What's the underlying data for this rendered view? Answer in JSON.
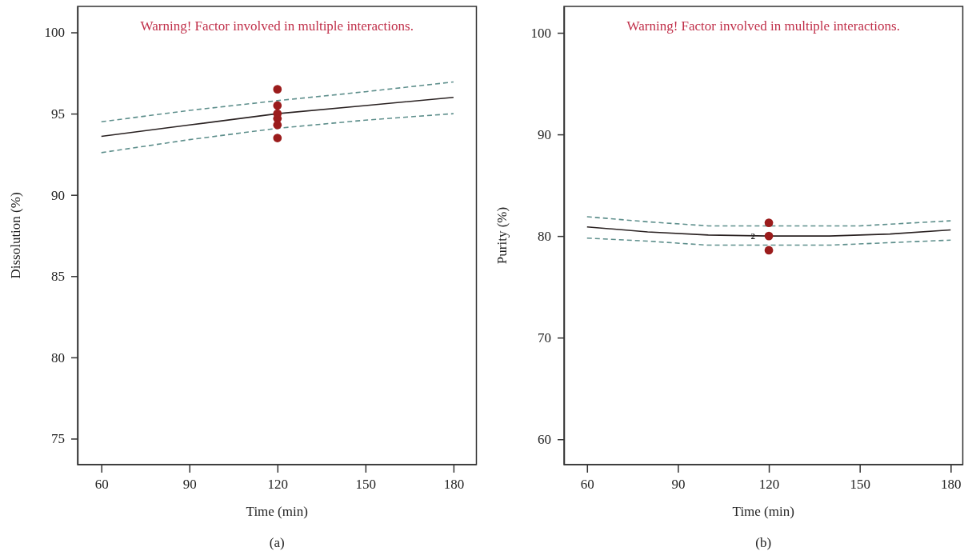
{
  "chart_data": [
    {
      "type": "line",
      "title": "(a)",
      "xlabel": "Time (min)",
      "ylabel": "Dissolution (%)",
      "annotations": [
        "Warning! Factor involved in multiple interactions."
      ],
      "xlim": [
        51.9,
        187.8
      ],
      "ylim": [
        73.4,
        101.6
      ],
      "xticks": [
        60,
        90,
        120,
        150,
        180
      ],
      "yticks": [
        75,
        80,
        85,
        90,
        95,
        100
      ],
      "grid": false,
      "series": [
        {
          "color": "#5e8f8c",
          "line_style": "dashed",
          "x": [
            60,
            90,
            120,
            150,
            180
          ],
          "values": [
            94.5,
            95.2,
            95.8,
            96.35,
            96.95
          ]
        },
        {
          "color": "#2a2222",
          "line_style": "solid",
          "x": [
            60,
            90,
            120,
            150,
            180
          ],
          "values": [
            93.6,
            94.3,
            95.0,
            95.5,
            96.0
          ]
        },
        {
          "color": "#5e8f8c",
          "line_style": "dashed",
          "x": [
            60,
            90,
            120,
            150,
            180
          ],
          "values": [
            92.6,
            93.4,
            94.1,
            94.6,
            95.0
          ]
        },
        {
          "type": "scatter",
          "color": "#9b1c1c",
          "marker": "circle",
          "x": [
            120,
            120,
            120,
            120,
            120,
            120
          ],
          "values": [
            96.5,
            95.5,
            95.0,
            94.7,
            94.3,
            93.5
          ]
        }
      ]
    },
    {
      "type": "line",
      "title": "(b)",
      "xlabel": "Time (min)",
      "ylabel": "Purity (%)",
      "annotations": [
        "Warning! Factor involved in multiple interactions.",
        {
          "text": "2",
          "x": 116,
          "y": 80
        }
      ],
      "xlim": [
        52.4,
        184
      ],
      "ylim": [
        57.5,
        102.6
      ],
      "xticks": [
        60,
        90,
        120,
        150,
        180
      ],
      "yticks": [
        60,
        70,
        80,
        90,
        100
      ],
      "grid": false,
      "series": [
        {
          "color": "#5e8f8c",
          "line_style": "dashed",
          "x": [
            60,
            80,
            100,
            120,
            150,
            180
          ],
          "values": [
            81.9,
            81.4,
            81.0,
            81.0,
            81.0,
            81.5
          ]
        },
        {
          "color": "#2a2222",
          "line_style": "solid",
          "x": [
            60,
            80,
            100,
            120,
            140,
            160,
            180
          ],
          "values": [
            80.9,
            80.4,
            80.1,
            80.0,
            80.0,
            80.2,
            80.6
          ]
        },
        {
          "color": "#5e8f8c",
          "line_style": "dashed",
          "x": [
            60,
            80,
            100,
            140,
            180
          ],
          "values": [
            79.8,
            79.5,
            79.1,
            79.1,
            79.6
          ]
        },
        {
          "type": "scatter",
          "color": "#9b1c1c",
          "marker": "circle",
          "x": [
            120,
            120,
            120
          ],
          "values": [
            81.3,
            80.0,
            78.6
          ]
        }
      ]
    }
  ]
}
